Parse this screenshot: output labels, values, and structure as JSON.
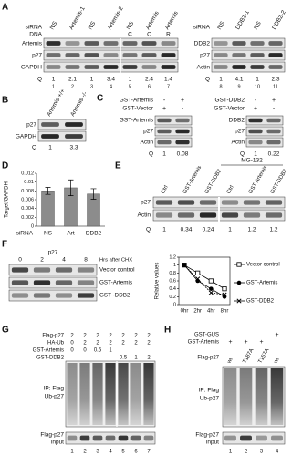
{
  "figure": {
    "a": {
      "label": "A",
      "left": {
        "sirna_label": "siRNA",
        "sirna": [
          "NS",
          "Artemis-1",
          "NS",
          "Artemis-2",
          "NS",
          "Artemis",
          "Artemis"
        ],
        "dna_label": "DNA",
        "dna": [
          null,
          null,
          null,
          null,
          "C",
          "C",
          "R"
        ],
        "rows": [
          "Artemis",
          "p27",
          "GAPDH"
        ],
        "q_label": "Q",
        "q": [
          1,
          2.1,
          1,
          3.4,
          1,
          2.4,
          1.4
        ],
        "lanes": [
          1,
          2,
          3,
          4,
          5,
          6,
          7
        ]
      },
      "right": {
        "sirna_label": "siRNA",
        "sirna": [
          "NS",
          "DDB2-1",
          "NS",
          "DDB2-2"
        ],
        "rows": [
          "DDB2",
          "p27",
          "Actin"
        ],
        "q_label": "Q",
        "q": [
          1,
          4.1,
          1,
          2.3
        ],
        "lanes": [
          8,
          9,
          10,
          11
        ]
      }
    },
    "b": {
      "label": "B",
      "columns": [
        "Artemis +/+",
        "Artemis -/-"
      ],
      "rows": [
        "p27",
        "GAPDH"
      ],
      "q_label": "Q",
      "q": [
        1,
        3.3
      ]
    },
    "c": {
      "label": "C",
      "left": {
        "conditions": [
          {
            "name": "GST-Artemis",
            "signs": [
              "-",
              "+"
            ]
          },
          {
            "name": "GST-Vector",
            "signs": [
              "+",
              "-"
            ]
          }
        ],
        "rows": [
          "GST-Artemis",
          "p27",
          "Actin"
        ],
        "q_label": "Q",
        "q": [
          1,
          0.08
        ]
      },
      "right": {
        "conditions": [
          {
            "name": "GST-DDB2",
            "signs": [
              "-",
              "+"
            ]
          },
          {
            "name": "GST-Vector",
            "signs": [
              "+",
              "-"
            ]
          }
        ],
        "rows": [
          "DDB2",
          "p27",
          "Actin"
        ],
        "q_label": "Q",
        "q": [
          1,
          0.22
        ]
      }
    },
    "d": {
      "label": "D"
    },
    "e": {
      "label": "E",
      "treatment": "MG-132",
      "columns": [
        "Ctrl",
        "GST-Artemis",
        "GST-DDB2",
        "Ctrl",
        "GST-Artemis",
        "GST-DDB2"
      ],
      "rows": [
        "p27",
        "Actin"
      ],
      "q_label": "Q",
      "q": [
        1,
        0.34,
        0.24,
        1,
        1.2,
        1.2
      ]
    },
    "f": {
      "label": "F",
      "protein": "p27",
      "times": [
        0,
        2,
        4,
        8
      ],
      "time_label": "Hrs after CHX",
      "rows": [
        "Vector control",
        "GST-Artemis",
        "GST -DDB2"
      ]
    },
    "g": {
      "label": "G",
      "conditions": [
        {
          "name": "Flag-p27",
          "amounts": [
            2,
            2,
            2,
            2,
            2,
            2,
            2
          ]
        },
        {
          "name": "HA-Ub",
          "amounts": [
            0,
            2,
            2,
            2,
            2,
            2,
            2
          ]
        },
        {
          "name": "GST-Artemis",
          "amounts": [
            0,
            0,
            0.5,
            1,
            null,
            null,
            null
          ]
        },
        {
          "name": "GST-DDB2",
          "amounts": [
            null,
            null,
            null,
            null,
            0.5,
            1,
            2
          ]
        }
      ],
      "ip_label": "IP: Flag",
      "ub_label": "Ub-p27",
      "input_label": [
        "Flag-p27",
        "input"
      ],
      "lanes": [
        1,
        2,
        3,
        4,
        5,
        6,
        7
      ]
    },
    "h": {
      "label": "H",
      "conditions": [
        {
          "name": "GST-GUS",
          "signs": [
            null,
            null,
            null,
            "+"
          ]
        },
        {
          "name": "GST-Artemis",
          "signs": [
            "+",
            "+",
            "+",
            null
          ]
        }
      ],
      "flag_label": "Flag-p27",
      "flag": [
        "wt",
        "T187A",
        "T157A",
        "wt"
      ],
      "ip_label": "IP: Flag",
      "ub_label": "Ub-p27",
      "input_label": [
        "Flag-p27",
        "input"
      ],
      "lanes": [
        1,
        2,
        3,
        4
      ]
    }
  },
  "chart_data": [
    {
      "type": "bar",
      "ylabel": "Target/GAPDH",
      "xlabel": "siRNA",
      "categories": [
        "NS",
        "Art",
        "DDB2"
      ],
      "values": [
        0.008,
        0.0087,
        0.0073
      ],
      "errors": [
        0.0008,
        0.0018,
        0.0012
      ],
      "color": "#8c8c8c",
      "ylim": [
        0,
        0.012
      ],
      "yticks": [
        0,
        0.002,
        0.004,
        0.006,
        0.008,
        0.01,
        0.012
      ]
    },
    {
      "type": "line",
      "ylabel": "Relative values",
      "categories": [
        "0hr",
        "2hr",
        "4hr",
        "8hr"
      ],
      "ylim": [
        0,
        1.2
      ],
      "yticks": [
        0,
        0.2,
        0.4,
        0.6,
        0.8,
        1,
        1.2
      ],
      "series": [
        {
          "name": "Vector control",
          "color": "#000000",
          "marker": "square",
          "values": [
            1,
            0.8,
            0.6,
            0.4
          ]
        },
        {
          "name": "GST-Artemis",
          "color": "#000000",
          "marker": "circle",
          "values": [
            1,
            0.6,
            0.4,
            0.2
          ]
        },
        {
          "name": "GST-DDB2",
          "color": "#000000",
          "marker": "x",
          "values": [
            1,
            0.65,
            0.3,
            0.25
          ]
        }
      ]
    }
  ]
}
